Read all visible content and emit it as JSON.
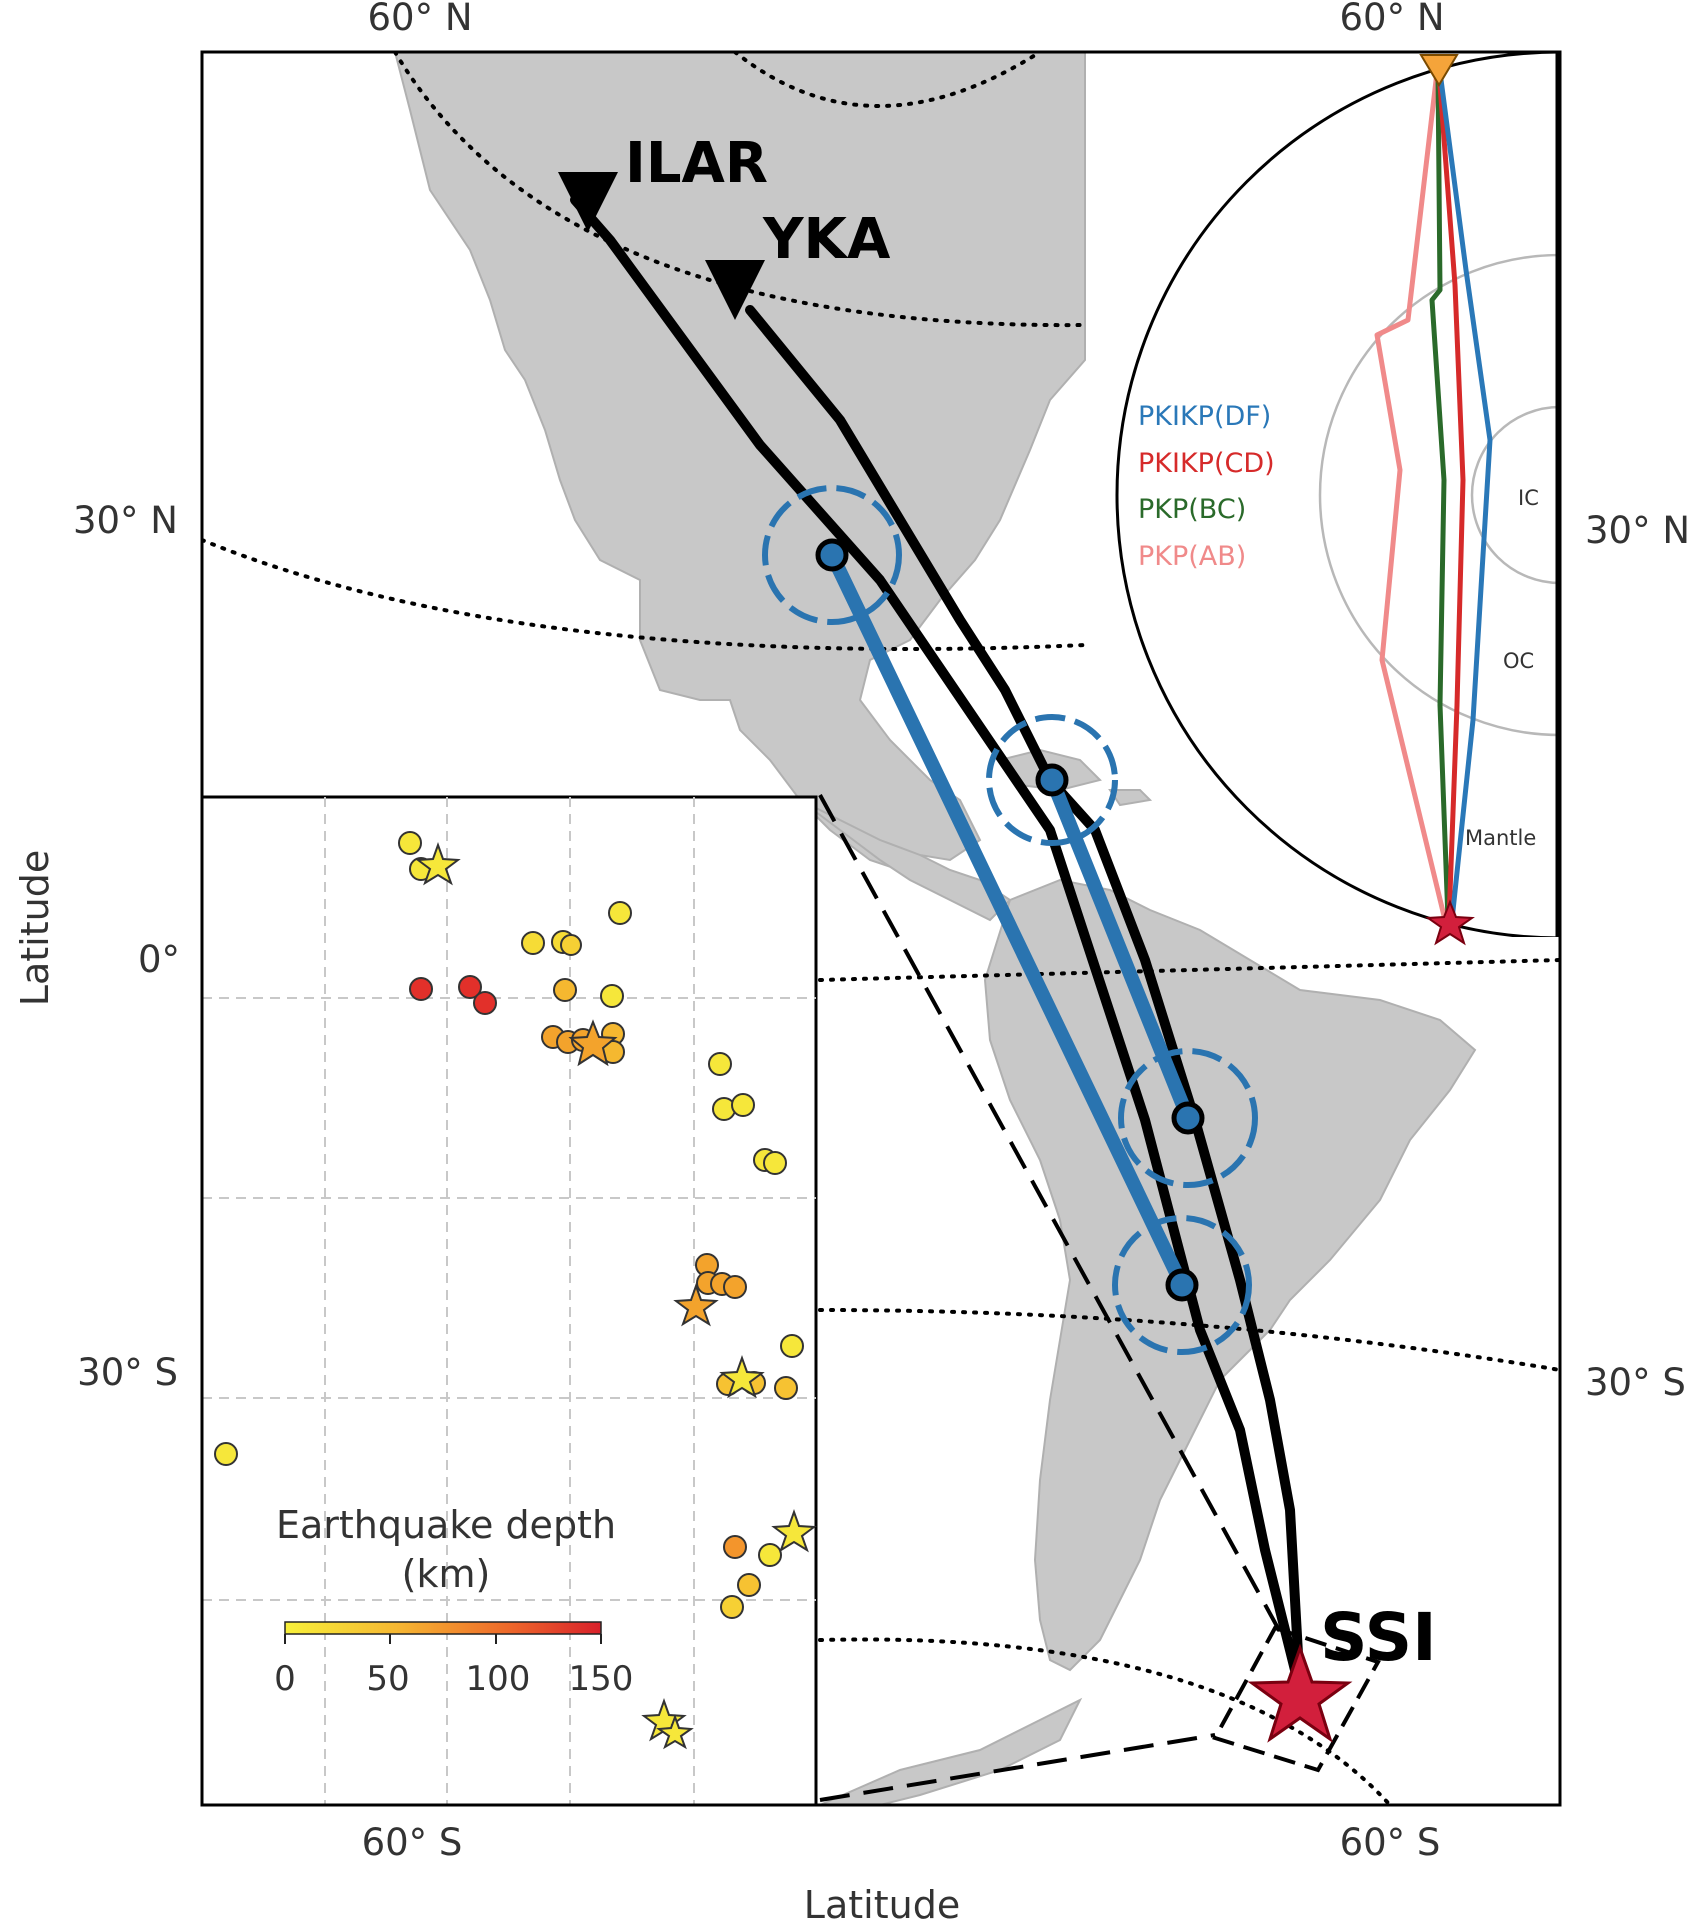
{
  "figure": {
    "outer_axis_labels": {
      "top_left": "60° N",
      "top_right": "60° N",
      "left_30n": "30° N",
      "right_30n": "30° N",
      "left_0": "0°",
      "left_30s": "30° S",
      "right_30s": "30° S",
      "bottom_left": "60° S",
      "bottom_right": "60° S"
    },
    "ylabel": "Latitude",
    "xlabel": "Latitude",
    "stations": [
      {
        "id": "ILAR",
        "label": "ILAR"
      },
      {
        "id": "YKA",
        "label": "YKA"
      }
    ],
    "source_label": "SSI",
    "colors": {
      "land": "#c8c8c8",
      "path": "#000000",
      "core_segment": "#2a74b0",
      "source_star": "#d21f3c",
      "station_marker": "#f5a43a"
    },
    "phase_inset": {
      "legend": [
        {
          "name": "PKIKP(DF)",
          "color": "#2a78b8"
        },
        {
          "name": "PKIKP(CD)",
          "color": "#d62a2a"
        },
        {
          "name": "PKP(BC)",
          "color": "#2a6a2a"
        },
        {
          "name": "PKP(AB)",
          "color": "#f08a8a"
        }
      ],
      "layer_labels": {
        "ic": "IC",
        "oc": "OC",
        "mantle": "Mantle"
      }
    },
    "depth_inset": {
      "colorbar_title_line1": "Earthquake depth",
      "colorbar_title_line2": "(km)",
      "colorbar_ticks": [
        "0",
        "50",
        "100",
        "150"
      ],
      "colorbar_range_km": [
        0,
        150
      ]
    }
  }
}
